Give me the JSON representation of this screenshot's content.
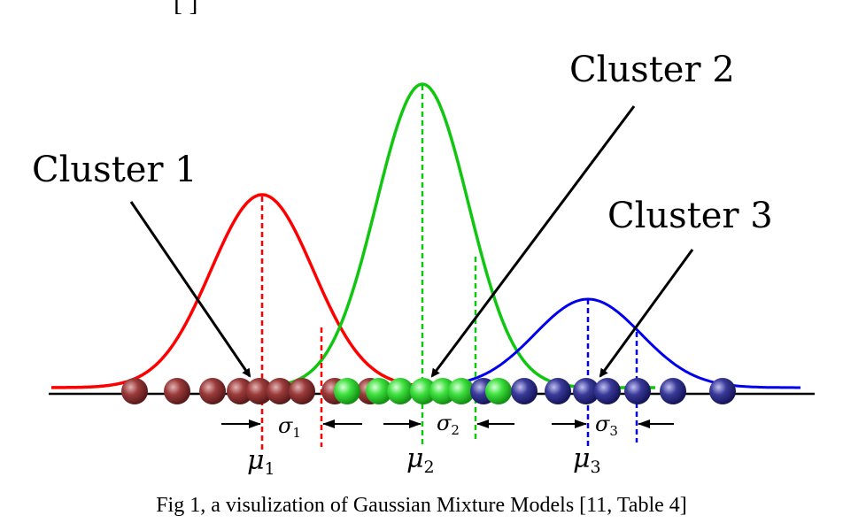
{
  "top_fragment": "[ ]",
  "clusters": [
    {
      "label": "Cluster 1",
      "mean_symbol": "μ",
      "mean_sub": "1",
      "sigma_symbol": "σ",
      "sigma_sub": "1",
      "color": "#ff0000",
      "ball_color": "#8b2a2a",
      "ball_light": "#d9a0a0"
    },
    {
      "label": "Cluster 2",
      "mean_symbol": "μ",
      "mean_sub": "2",
      "sigma_symbol": "σ",
      "sigma_sub": "2",
      "color": "#11c611",
      "ball_color": "#22bb22",
      "ball_light": "#b8ffb8"
    },
    {
      "label": "Cluster 3",
      "mean_symbol": "μ",
      "mean_sub": "3",
      "sigma_symbol": "σ",
      "sigma_sub": "3",
      "color": "#0000ee",
      "ball_color": "#2a2a8a",
      "ball_light": "#a8a8e8"
    }
  ],
  "caption": "Fig 1, a visulization of Gaussian Mixture Models [11, Table 4]"
}
